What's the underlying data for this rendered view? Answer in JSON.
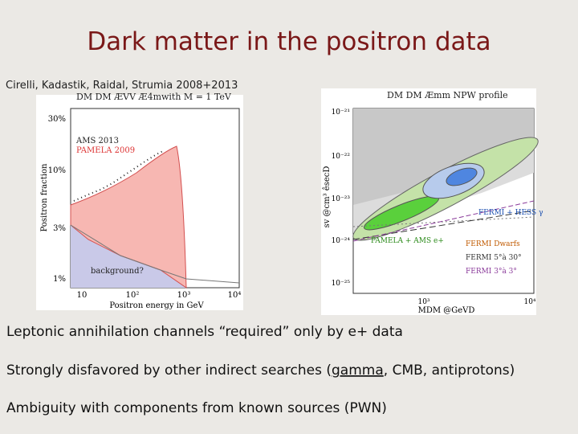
{
  "slide": {
    "title": "Dark matter in the positron data",
    "citation": "Cirelli, Kadastik, Raidal, Strumia 2008+2013",
    "bullets": [
      {
        "parts": [
          "Leptonic annihilation channels “required” only by e+ data"
        ]
      },
      {
        "parts": [
          "Strongly disfavored by other indirect searches (",
          "gamma",
          ", CMB, antiprotons)"
        ]
      },
      {
        "parts": [
          "Ambiguity with components from known sources (PWN)"
        ]
      }
    ]
  },
  "left_plot": {
    "title": "DM DM ÆVV Æ4mwith M = 1 TeV",
    "y_label": "Positron fraction",
    "x_label": "Positron energy in GeV",
    "y_ticks": [
      "30%",
      "10%",
      "3%",
      "1%"
    ],
    "x_ticks": [
      "10",
      "10²",
      "10³",
      "10⁴"
    ],
    "labels": [
      "AMS 2013",
      "PAMELA 2009",
      "background?"
    ]
  },
  "right_plot": {
    "title": "DM DM Æmm NPW profile",
    "y_label": "sv @cm³ êsecD",
    "x_label": "MDM @GeVD",
    "y_ticks": [
      "10⁻²¹",
      "10⁻²²",
      "10⁻²³",
      "10⁻²⁴",
      "10⁻²⁵"
    ],
    "x_ticks": [
      "10³",
      "10⁴"
    ],
    "labels": [
      "FERMI + HESS γ",
      "PAMELA + AMS e+"
    ],
    "legend": [
      "FERMI Dwarfs",
      "FERMI 5°à 30°",
      "FERMI 3°à 3°"
    ]
  }
}
